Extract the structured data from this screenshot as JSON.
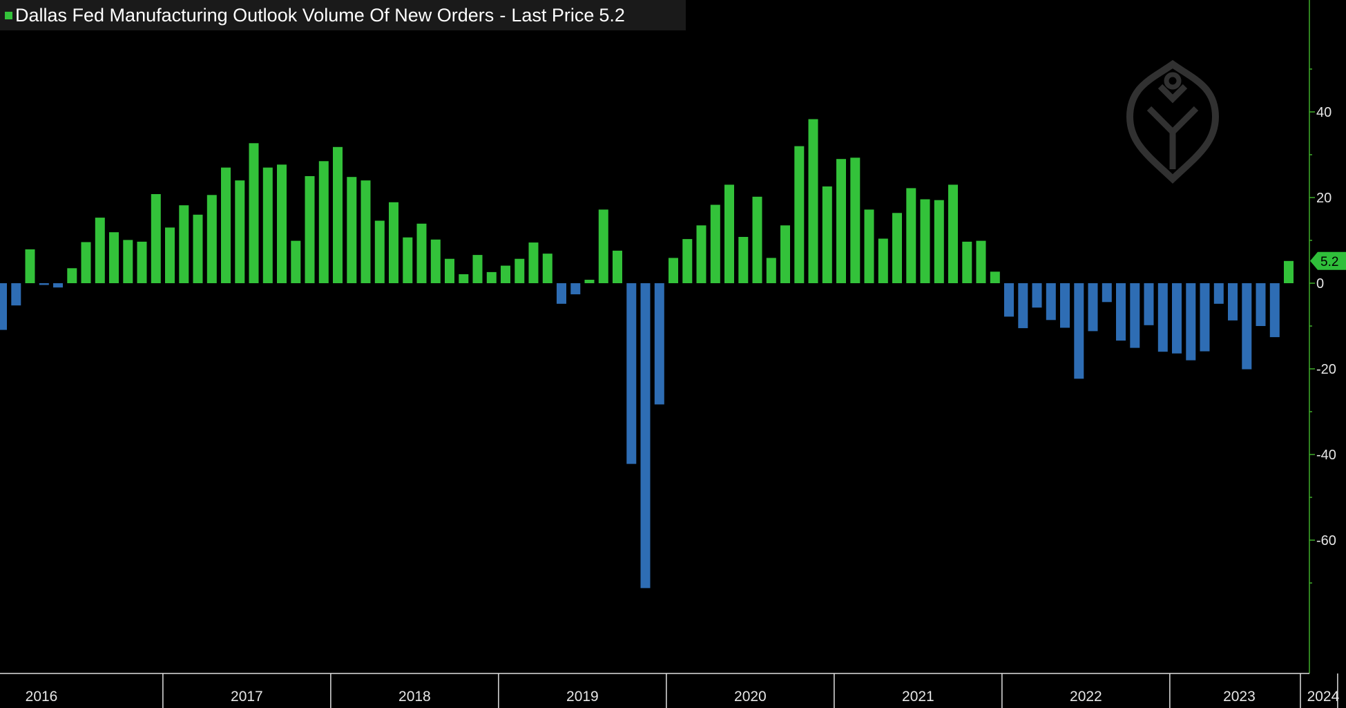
{
  "legend": {
    "title": "Dallas Fed Manufacturing Outlook Volume Of New Orders",
    "separator": "-",
    "price_label": "Last Price",
    "price_value": "5.2"
  },
  "colors": {
    "positive": "#33c23a",
    "negative": "#2e6db4",
    "axis": "#3fae2a",
    "background": "#000000",
    "legend_bg": "#1a1a1a",
    "last_tag": "#2fbf3a"
  },
  "watermark": {
    "icon": "logo-watermark-icon"
  },
  "chart_data": {
    "type": "bar",
    "title": "Dallas Fed Manufacturing Outlook Volume Of New Orders",
    "last_value": 5.2,
    "ylim": [
      -71.5,
      52
    ],
    "yticks": [
      40,
      20,
      0,
      -20,
      -40,
      -60
    ],
    "years": [
      "2016",
      "2017",
      "2018",
      "2019",
      "2020",
      "2021",
      "2022",
      "2023",
      "2024"
    ],
    "start": "2016-01",
    "values": [
      -10.9,
      -5.2,
      7.9,
      -0.4,
      -1.0,
      3.5,
      9.6,
      15.3,
      11.9,
      10.1,
      9.7,
      20.8,
      13.0,
      18.2,
      16.0,
      20.6,
      27.0,
      24.0,
      32.7,
      27.0,
      27.7,
      9.9,
      25.0,
      28.5,
      31.8,
      24.8,
      24.0,
      14.6,
      18.9,
      10.7,
      13.9,
      10.2,
      5.7,
      2.1,
      6.6,
      2.6,
      4.1,
      5.7,
      9.5,
      6.9,
      -4.8,
      -2.6,
      0.8,
      17.2,
      7.6,
      -42.2,
      -71.2,
      -28.3,
      5.9,
      10.3,
      13.5,
      18.3,
      23.0,
      10.8,
      20.2,
      5.9,
      13.5,
      32.0,
      38.3,
      22.6,
      29.0,
      29.3,
      17.2,
      10.4,
      16.4,
      22.2,
      19.6,
      19.4,
      23.0,
      9.7,
      9.9,
      2.7,
      -7.8,
      -10.5,
      -5.7,
      -8.6,
      -10.4,
      -22.3,
      -11.2,
      -4.4,
      -13.4,
      -15.1,
      -9.8,
      -16.0,
      -16.4,
      -18.0,
      -15.9,
      -4.8,
      -8.7,
      -20.1,
      -10.0,
      -12.6,
      5.2
    ]
  }
}
